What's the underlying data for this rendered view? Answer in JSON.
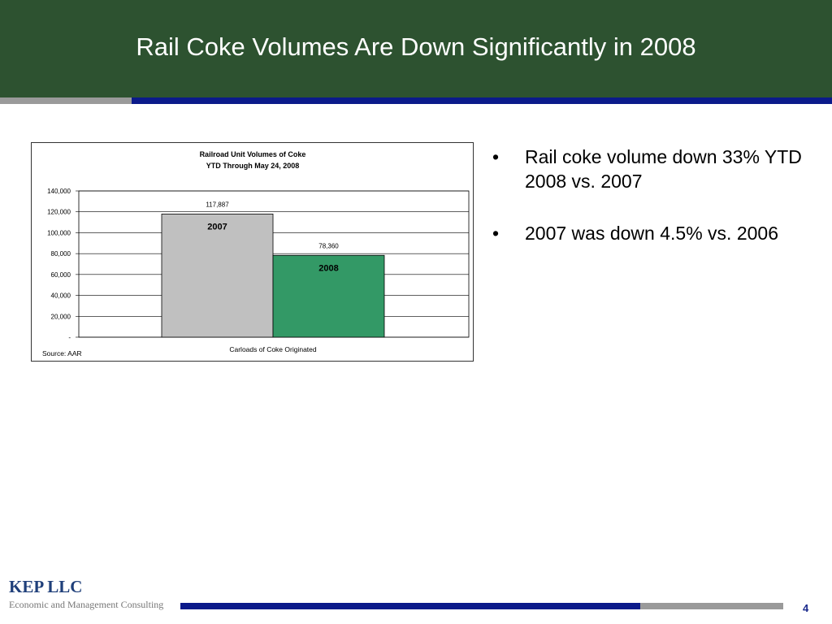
{
  "slide": {
    "title": "Rail Coke Volumes Are Down Significantly in 2008",
    "page_number": "4",
    "colors": {
      "header": "#2d5230",
      "accent_blue": "#0b1a8a",
      "accent_gray": "#9a9a9a"
    }
  },
  "bullets": [
    "Rail coke volume down 33% YTD 2008 vs. 2007",
    "2007 was down 4.5% vs. 2006"
  ],
  "footer": {
    "logo": "KEP LLC",
    "tagline": "Economic and Management Consulting"
  },
  "chart_data": {
    "type": "bar",
    "title": "Railroad Unit Volumes of Coke",
    "subtitle": "YTD Through May 24, 2008",
    "categories": [
      "2007",
      "2008"
    ],
    "values": [
      117887,
      78360
    ],
    "value_labels": [
      "117,887",
      "78,360"
    ],
    "colors": [
      "#c0c0c0",
      "#339966"
    ],
    "xlabel": "Carloads of Coke Originated",
    "ylabel": "",
    "ylim": [
      0,
      140000
    ],
    "yticks": [
      0,
      20000,
      40000,
      60000,
      80000,
      100000,
      120000,
      140000
    ],
    "ytick_labels": [
      "-",
      "20,000",
      "40,000",
      "60,000",
      "80,000",
      "100,000",
      "120,000",
      "140,000"
    ],
    "grid": true,
    "source": "Source: AAR"
  }
}
